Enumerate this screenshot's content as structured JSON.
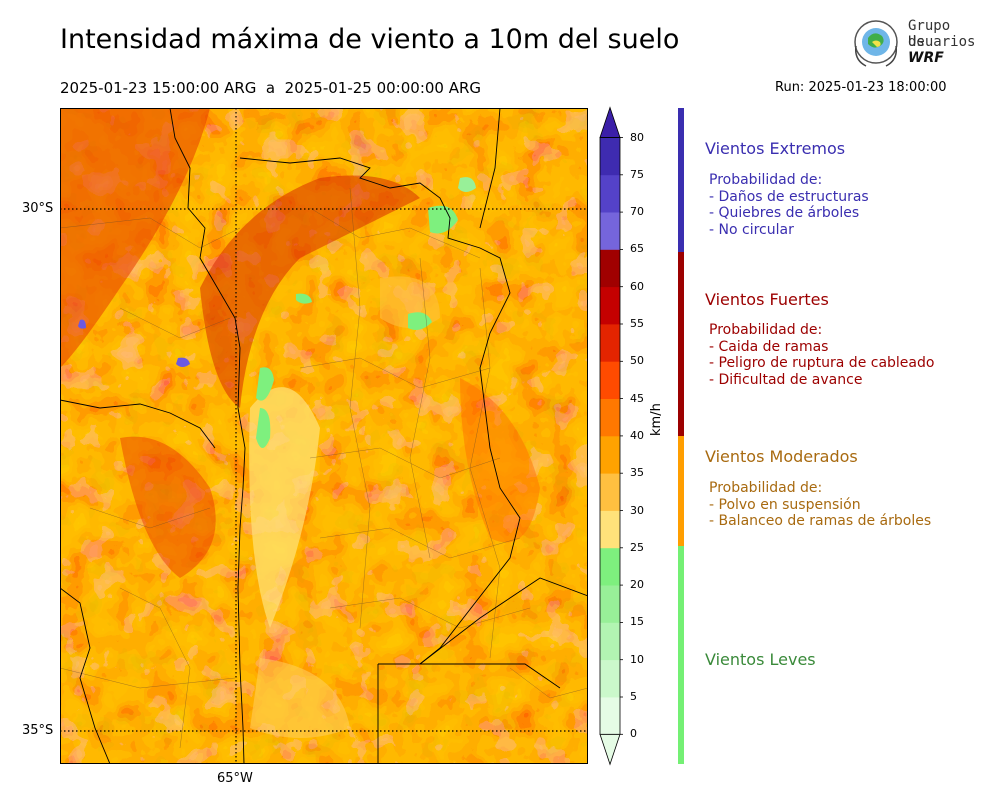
{
  "title": "Intensidad máxima de viento a 10m del suelo",
  "date_range": "2025-01-23 15:00:00 ARG  a  2025-01-25 00:00:00 ARG",
  "run": "Run: 2025-01-23 18:00:00",
  "logo": {
    "line1": "Grupo de",
    "line2": "Usuarios",
    "line3": "WRF"
  },
  "map": {
    "lat_labels": [
      "30°S",
      "35°S"
    ],
    "lon_labels": [
      "65°W"
    ]
  },
  "colorbar": {
    "unit": "km/h",
    "ticks": [
      "0",
      "5",
      "10",
      "15",
      "20",
      "25",
      "30",
      "35",
      "40",
      "45",
      "50",
      "55",
      "60",
      "65",
      "70",
      "75",
      "80"
    ],
    "colors": [
      "#e5fce5",
      "#cbf8cb",
      "#b2f5b2",
      "#98f098",
      "#7ef07e",
      "#ffe27a",
      "#ffc040",
      "#ffa200",
      "#ff7800",
      "#ff4b00",
      "#e32400",
      "#c40000",
      "#a00000",
      "#7565dc",
      "#5442c8",
      "#3e2bb0",
      "#3b1fa8"
    ]
  },
  "categories": [
    {
      "title": "Vientos Extremos",
      "color": "#3a2eb0",
      "desc": [
        "Probabilidad de:",
        "- Daños de estructuras",
        "- Quiebres de árboles",
        "- No circular"
      ]
    },
    {
      "title": "Vientos Fuertes",
      "color": "#9c0000",
      "desc": [
        "Probabilidad de:",
        "- Caida de ramas",
        "- Peligro de ruptura de cableado",
        "- Dificultad de avance"
      ]
    },
    {
      "title": "Vientos Moderados",
      "color": "#ff9e00",
      "textcolor": "#a86a10",
      "desc": [
        "Probabilidad de:",
        "- Polvo en suspensión",
        "- Balanceo de ramas de árboles"
      ]
    },
    {
      "title": "Vientos Leves",
      "color": "#74f074",
      "textcolor": "#3a8a3a",
      "desc": []
    }
  ]
}
